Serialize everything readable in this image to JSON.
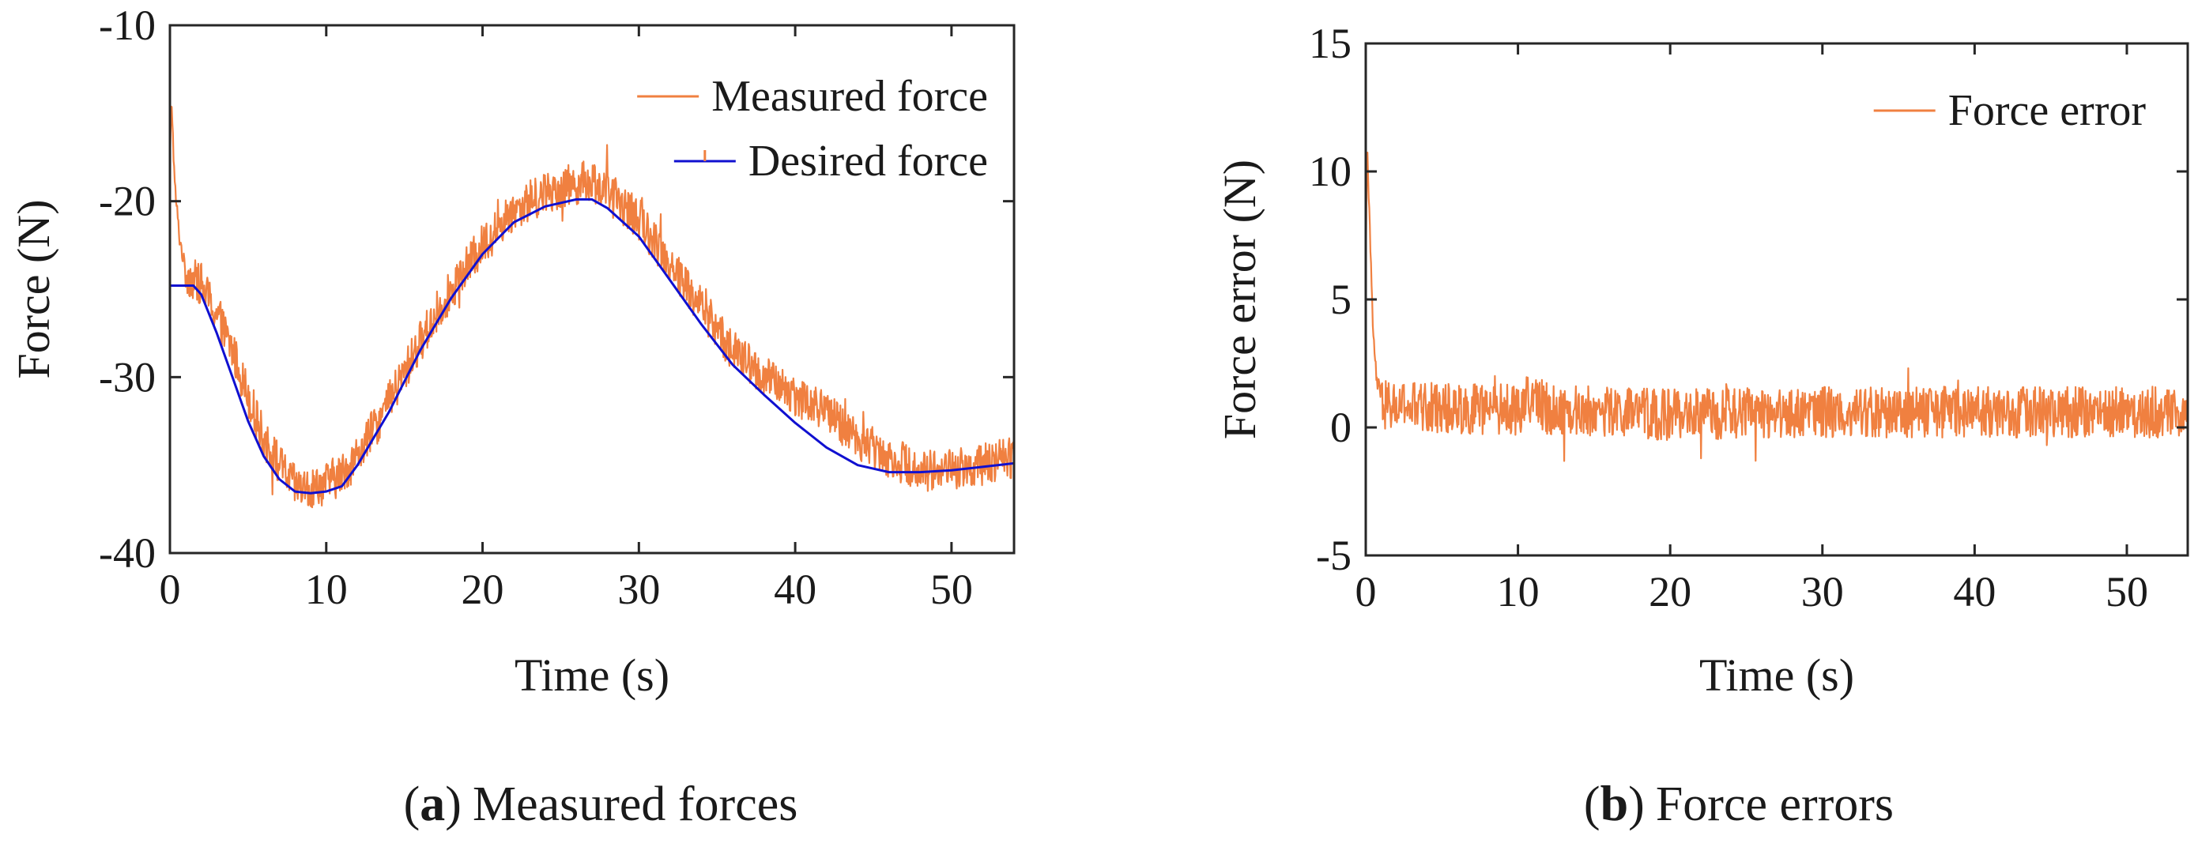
{
  "chart_data": [
    {
      "id": "a",
      "type": "line",
      "caption": {
        "letter": "a",
        "text": "Measured forces",
        "open": "(",
        "close": ")"
      },
      "xlabel": "Time (s)",
      "ylabel": "Force (N)",
      "xlim": [
        0,
        54
      ],
      "ylim": [
        -40,
        -10
      ],
      "xticks": [
        0,
        10,
        20,
        30,
        40,
        50
      ],
      "yticks": [
        -40,
        -30,
        -20,
        -10
      ],
      "legend_position": "top-right",
      "series": [
        {
          "name": "Measured force",
          "color": "#f08040",
          "noise": 1.2,
          "x": [
            0,
            0.1,
            0.3,
            0.6,
            1.0,
            1.5,
            2.0,
            3,
            4,
            5,
            6,
            7,
            8,
            9,
            10,
            11,
            12,
            14,
            16,
            18,
            20,
            22,
            24,
            26,
            27,
            28,
            30,
            32,
            34,
            36,
            38,
            40,
            42,
            44,
            46,
            48,
            50,
            52,
            54
          ],
          "y": [
            -18,
            -14,
            -19,
            -22,
            -24,
            -24.5,
            -24.7,
            -26.5,
            -28.5,
            -31,
            -33.5,
            -35,
            -36.2,
            -36.5,
            -36,
            -35.5,
            -34.5,
            -31.5,
            -28,
            -25,
            -22.5,
            -20.5,
            -19.5,
            -19.0,
            -18.8,
            -19.5,
            -21,
            -23.5,
            -26,
            -28.5,
            -30,
            -31,
            -32,
            -33.5,
            -34.5,
            -35.3,
            -35.2,
            -35,
            -34.5
          ]
        },
        {
          "name": "Desired force",
          "color": "#1010d0",
          "x": [
            0,
            1.5,
            2.0,
            3,
            4,
            5,
            6,
            7,
            8,
            9,
            10,
            11,
            12,
            14,
            16,
            18,
            20,
            22,
            24,
            26,
            27,
            28,
            30,
            32,
            34,
            36,
            38,
            40,
            42,
            44,
            46,
            48,
            50,
            52,
            54
          ],
          "y": [
            -24.8,
            -24.8,
            -25.3,
            -27.5,
            -30,
            -32.5,
            -34.5,
            -35.8,
            -36.5,
            -36.6,
            -36.5,
            -36.2,
            -35,
            -32,
            -28.5,
            -25.5,
            -23,
            -21.2,
            -20.3,
            -19.9,
            -19.9,
            -20.4,
            -22,
            -24.5,
            -27,
            -29.3,
            -31,
            -32.6,
            -34,
            -35,
            -35.4,
            -35.4,
            -35.3,
            -35.1,
            -34.9
          ]
        }
      ]
    },
    {
      "id": "b",
      "type": "line",
      "caption": {
        "letter": "b",
        "text": "Force errors",
        "open": "(",
        "close": ")"
      },
      "xlabel": "Time (s)",
      "ylabel": "Force error (N)",
      "xlim": [
        0,
        54
      ],
      "ylim": [
        -5,
        15
      ],
      "xticks": [
        0,
        10,
        20,
        30,
        40,
        50
      ],
      "yticks": [
        -5,
        0,
        5,
        10,
        15
      ],
      "legend_position": "top-right",
      "series": [
        {
          "name": "Force error",
          "color": "#f08040",
          "noise": 1.0,
          "x": [
            0,
            0.1,
            0.2,
            0.35,
            0.5,
            0.7,
            1.0,
            1.5,
            3,
            10,
            11,
            12,
            20,
            30,
            40,
            50,
            54
          ],
          "y": [
            6,
            11.5,
            9,
            6,
            3.5,
            2,
            1,
            0.8,
            0.8,
            0.7,
            1.2,
            0.7,
            0.5,
            0.6,
            0.6,
            0.6,
            0.6
          ]
        }
      ]
    }
  ]
}
